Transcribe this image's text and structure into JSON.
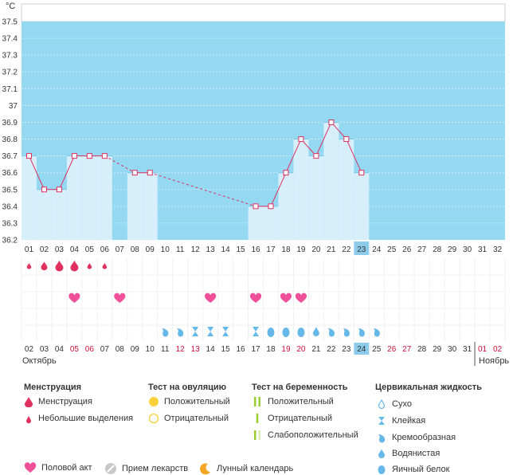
{
  "chart_data": {
    "type": "line",
    "unit": "°C",
    "ylim": [
      36.2,
      37.5
    ],
    "y_ticks": [
      "37.5",
      "37.4",
      "37.3",
      "37.2",
      "37.1",
      "37",
      "36.9",
      "36.8",
      "36.7",
      "36.6",
      "36.5",
      "36.4",
      "36.3",
      "36.2"
    ],
    "cycle_days": [
      "01",
      "02",
      "03",
      "04",
      "05",
      "06",
      "07",
      "08",
      "09",
      "10",
      "11",
      "12",
      "13",
      "14",
      "15",
      "16",
      "17",
      "18",
      "19",
      "20",
      "21",
      "22",
      "23",
      "24",
      "25",
      "26",
      "27",
      "28",
      "29",
      "30",
      "31",
      "32"
    ],
    "dates": [
      "02",
      "03",
      "04",
      "05",
      "06",
      "07",
      "08",
      "09",
      "10",
      "11",
      "12",
      "13",
      "14",
      "15",
      "16",
      "17",
      "18",
      "19",
      "20",
      "21",
      "22",
      "23",
      "24",
      "25",
      "26",
      "27",
      "28",
      "29",
      "30",
      "31",
      "01",
      "02"
    ],
    "weekend_dates": [
      4,
      5,
      11,
      12,
      18,
      19,
      25,
      26,
      31,
      32
    ],
    "current_day_index": 23,
    "series": [
      {
        "values": [
          36.7,
          36.5,
          36.5,
          36.7,
          36.7,
          36.7,
          null,
          36.6,
          36.6,
          null,
          null,
          null,
          null,
          null,
          null,
          36.4,
          36.4,
          36.6,
          36.8,
          36.7,
          36.9,
          36.8,
          36.6,
          null,
          null,
          null,
          null,
          null,
          null,
          null,
          null,
          null
        ]
      }
    ],
    "menstruation": {
      "3": "heavy",
      "4": "heavy",
      "1": "light",
      "2": "medium",
      "5": "light",
      "6": "light"
    },
    "intercourse_days": [
      4,
      7,
      13,
      16,
      18,
      19
    ],
    "cervical_fluid": {
      "10": "creamy",
      "11": "creamy",
      "12": "sticky",
      "13": "sticky",
      "14": "sticky",
      "16": "sticky",
      "17": "eggwhite",
      "18": "eggwhite",
      "19": "eggwhite",
      "20": "watery",
      "21": "creamy",
      "22": "creamy",
      "23": "creamy",
      "24": "creamy"
    },
    "colors": {
      "band": "#94d8f2",
      "bar": "#d6effb",
      "bar_edge": "#7fc6ea",
      "line": "#e0315f",
      "current": "#8ccbea"
    }
  },
  "months": {
    "start": "Октябрь",
    "end": "Ноябрь"
  },
  "legend": {
    "menstruation": {
      "title": "Менструация",
      "items": [
        "Менструация",
        "Небольшие выделения"
      ]
    },
    "ovulation": {
      "title": "Тест на овуляцию",
      "items": [
        "Положительный",
        "Отрицательный"
      ]
    },
    "pregnancy": {
      "title": "Тест на беременность",
      "items": [
        "Положительный",
        "Отрицательный",
        "Слабоположительный"
      ]
    },
    "cervical": {
      "title": "Цервикальная жидкость",
      "items": [
        "Сухо",
        "Клейкая",
        "Кремообразная",
        "Водянистая",
        "Яичный белок"
      ]
    },
    "bottom": [
      "Половой акт",
      "Прием лекарств",
      "Лунный календарь"
    ]
  }
}
